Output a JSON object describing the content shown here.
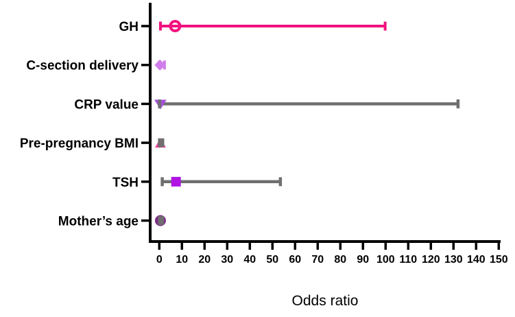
{
  "chart_data": {
    "type": "scatter",
    "subtype": "horizontal-forest-plot-with-error-bars",
    "xlabel": "Odds ratio",
    "x_ticks": [
      "0",
      "10",
      "20",
      "30",
      "40",
      "50",
      "60",
      "70",
      "80",
      "90",
      "100",
      "110",
      "120",
      "130",
      "140",
      "150"
    ],
    "x_tick_values": [
      0,
      10,
      20,
      30,
      40,
      50,
      60,
      70,
      80,
      90,
      100,
      110,
      120,
      130,
      140,
      150
    ],
    "xlim": [
      -4,
      151
    ],
    "grid": "off",
    "legend": "none",
    "categories": [
      "GH",
      "C-section delivery",
      "CRP value",
      "Pre-pregnancy BMI",
      "TSH",
      "Mother’s age"
    ],
    "series": [
      {
        "label": "GH",
        "odds_ratio": 7.0,
        "ci_low": 0.5,
        "ci_high": 99.8,
        "marker": "open-circle",
        "marker_color": "#F2117F",
        "bar_color": "#F2117F"
      },
      {
        "label": "C-section delivery",
        "odds_ratio": 0.3,
        "ci_low": 0.1,
        "ci_high": 2.3,
        "marker": "diamond",
        "marker_color": "#D17CEB",
        "bar_color": "#D17CEB"
      },
      {
        "label": "CRP value",
        "odds_ratio": 0.5,
        "ci_low": 0.1,
        "ci_high": 132.0,
        "marker": "triangle-down",
        "marker_color": "#A44FD6",
        "bar_color": "#6F6F6F"
      },
      {
        "label": "Pre-pregnancy BMI",
        "odds_ratio": 0.5,
        "ci_low": 0.1,
        "ci_high": 1.5,
        "marker": "triangle-up",
        "marker_color": "#F0439F",
        "bar_color": "#6F6F6F"
      },
      {
        "label": "TSH",
        "odds_ratio": 7.4,
        "ci_low": 1.3,
        "ci_high": 53.5,
        "marker": "square",
        "marker_color": "#AF14E3",
        "bar_color": "#6F6F6F"
      },
      {
        "label": "Mother’s age",
        "odds_ratio": 0.5,
        "ci_low": 0.1,
        "ci_high": 1.4,
        "marker": "circle",
        "marker_color": "#7E2B87",
        "bar_color": "#6F6F6F"
      }
    ],
    "axis_color": "#000000",
    "text_color": "#000000",
    "background": "#FFFFFF"
  }
}
